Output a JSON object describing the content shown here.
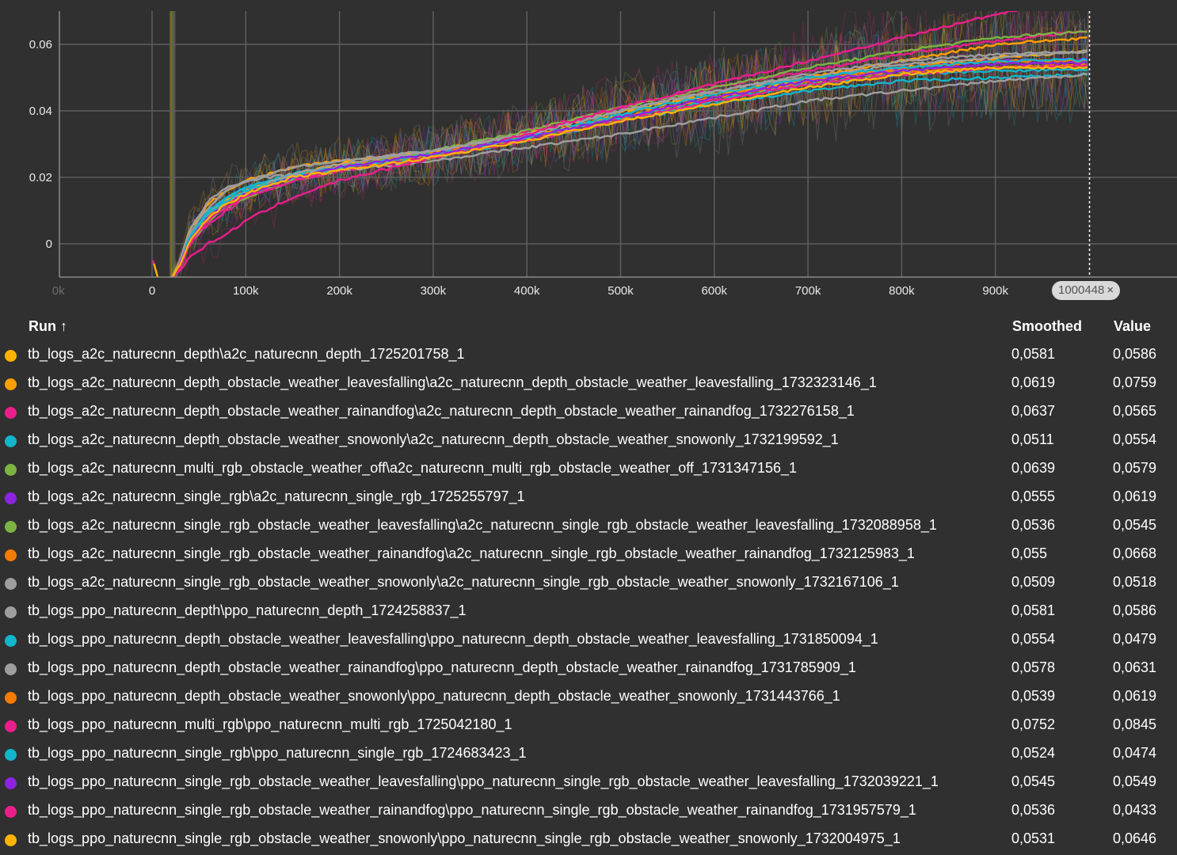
{
  "chart_data": {
    "type": "line",
    "title": "",
    "xlabel": "",
    "ylabel": "",
    "xlim": [
      -100000,
      1090000
    ],
    "ylim": [
      -0.01,
      0.07
    ],
    "x_ticks": [
      "0k",
      "0",
      "100k",
      "200k",
      "300k",
      "400k",
      "500k",
      "600k",
      "700k",
      "800k",
      "900k"
    ],
    "y_ticks": [
      "0",
      "0.02",
      "0.04",
      "0.06"
    ],
    "grid": true,
    "hover_step": 1000448,
    "x": [
      10000,
      20000,
      30000,
      40000,
      60000,
      80000,
      100000,
      150000,
      200000,
      300000,
      400000,
      500000,
      600000,
      700000,
      800000,
      900000,
      1000448
    ],
    "series": [
      {
        "name": "tb_logs_a2c_naturecnn_depth\\a2c_naturecnn_depth_1725201758_1",
        "color": "#ffb300",
        "values": [
          -0.012,
          -0.011,
          -0.006,
          0.002,
          0.009,
          0.013,
          0.016,
          0.021,
          0.024,
          0.028,
          0.033,
          0.04,
          0.045,
          0.049,
          0.053,
          0.056,
          0.058
        ]
      },
      {
        "name": "tb_logs_a2c_naturecnn_depth_obstacle_weather_leavesfalling\\a2c_naturecnn_depth_obstacle_weather_leavesfalling_1732323146_1",
        "color": "#ff9f00",
        "values": [
          -0.012,
          -0.011,
          -0.005,
          0.004,
          0.012,
          0.016,
          0.019,
          0.023,
          0.025,
          0.027,
          0.032,
          0.039,
          0.045,
          0.05,
          0.055,
          0.06,
          0.062
        ]
      },
      {
        "name": "tb_logs_a2c_naturecnn_depth_obstacle_weather_rainandfog\\a2c_naturecnn_depth_obstacle_weather_rainandfog_1732276158_1",
        "color": "#e91e8c",
        "values": [
          -0.012,
          -0.011,
          -0.007,
          0.0,
          0.006,
          0.01,
          0.014,
          0.019,
          0.022,
          0.027,
          0.034,
          0.041,
          0.047,
          0.052,
          0.057,
          0.061,
          0.064
        ]
      },
      {
        "name": "tb_logs_a2c_naturecnn_depth_obstacle_weather_snowonly\\a2c_naturecnn_depth_obstacle_weather_snowonly_1732199592_1",
        "color": "#12b5cb",
        "values": [
          -0.012,
          -0.011,
          -0.006,
          0.002,
          0.01,
          0.014,
          0.017,
          0.021,
          0.023,
          0.026,
          0.031,
          0.037,
          0.042,
          0.046,
          0.049,
          0.05,
          0.051
        ]
      },
      {
        "name": "tb_logs_a2c_naturecnn_multi_rgb_obstacle_weather_off\\a2c_naturecnn_multi_rgb_obstacle_weather_off_1731347156_1",
        "color": "#7cb342",
        "values": [
          -0.012,
          -0.011,
          -0.006,
          0.001,
          0.008,
          0.012,
          0.016,
          0.02,
          0.023,
          0.028,
          0.034,
          0.041,
          0.047,
          0.053,
          0.058,
          0.062,
          0.064
        ]
      },
      {
        "name": "tb_logs_a2c_naturecnn_single_rgb\\a2c_naturecnn_single_rgb_1725255797_1",
        "color": "#8e24e0",
        "values": [
          -0.012,
          -0.011,
          -0.006,
          0.001,
          0.008,
          0.012,
          0.015,
          0.02,
          0.023,
          0.027,
          0.032,
          0.038,
          0.044,
          0.049,
          0.053,
          0.055,
          0.0555
        ]
      },
      {
        "name": "tb_logs_a2c_naturecnn_single_rgb_obstacle_weather_leavesfalling\\a2c_naturecnn_single_rgb_obstacle_weather_leavesfalling_1732088958_1",
        "color": "#7cb342",
        "values": [
          -0.012,
          -0.011,
          -0.007,
          0.0,
          0.007,
          0.011,
          0.014,
          0.019,
          0.022,
          0.026,
          0.031,
          0.037,
          0.043,
          0.048,
          0.051,
          0.053,
          0.0536
        ]
      },
      {
        "name": "tb_logs_a2c_naturecnn_single_rgb_obstacle_weather_rainandfog\\a2c_naturecnn_single_rgb_obstacle_weather_rainandfog_1732125983_1",
        "color": "#f57c00",
        "values": [
          -0.012,
          -0.011,
          -0.006,
          0.002,
          0.009,
          0.013,
          0.016,
          0.02,
          0.023,
          0.027,
          0.032,
          0.038,
          0.044,
          0.049,
          0.053,
          0.055,
          0.055
        ]
      },
      {
        "name": "tb_logs_a2c_naturecnn_single_rgb_obstacle_weather_snowonly\\a2c_naturecnn_single_rgb_obstacle_weather_snowonly_1732167106_1",
        "color": "#9e9e9e",
        "values": [
          -0.012,
          -0.011,
          -0.005,
          0.004,
          0.013,
          0.017,
          0.019,
          0.021,
          0.022,
          0.025,
          0.029,
          0.033,
          0.038,
          0.043,
          0.046,
          0.049,
          0.0509
        ]
      },
      {
        "name": "tb_logs_ppo_naturecnn_depth\\ppo_naturecnn_depth_1724258837_1",
        "color": "#9e9e9e",
        "values": [
          -0.012,
          -0.011,
          -0.005,
          0.003,
          0.011,
          0.016,
          0.019,
          0.023,
          0.025,
          0.028,
          0.033,
          0.04,
          0.046,
          0.05,
          0.054,
          0.056,
          0.058
        ]
      },
      {
        "name": "tb_logs_ppo_naturecnn_depth_obstacle_weather_leavesfalling\\ppo_naturecnn_depth_obstacle_weather_leavesfalling_1731850094_1",
        "color": "#12b5cb",
        "values": [
          -0.012,
          -0.011,
          -0.006,
          0.002,
          0.01,
          0.014,
          0.017,
          0.021,
          0.023,
          0.027,
          0.032,
          0.039,
          0.045,
          0.05,
          0.053,
          0.055,
          0.0554
        ]
      },
      {
        "name": "tb_logs_ppo_naturecnn_depth_obstacle_weather_rainandfog\\ppo_naturecnn_depth_obstacle_weather_rainandfog_1731785909_1",
        "color": "#9e9e9e",
        "values": [
          -0.012,
          -0.011,
          -0.006,
          0.002,
          0.009,
          0.013,
          0.016,
          0.021,
          0.024,
          0.028,
          0.033,
          0.04,
          0.046,
          0.051,
          0.055,
          0.057,
          0.0578
        ]
      },
      {
        "name": "tb_logs_ppo_naturecnn_depth_obstacle_weather_snowonly\\ppo_naturecnn_depth_obstacle_weather_snowonly_1731443766_1",
        "color": "#f57c00",
        "values": [
          -0.012,
          -0.011,
          -0.006,
          0.001,
          0.008,
          0.012,
          0.015,
          0.02,
          0.023,
          0.027,
          0.032,
          0.038,
          0.044,
          0.049,
          0.052,
          0.053,
          0.0539
        ]
      },
      {
        "name": "tb_logs_ppo_naturecnn_multi_rgb\\ppo_naturecnn_multi_rgb_1725042180_1",
        "color": "#e91e8c",
        "values": [
          -0.012,
          -0.011,
          -0.008,
          -0.004,
          0.0,
          0.003,
          0.007,
          0.014,
          0.019,
          0.026,
          0.033,
          0.041,
          0.048,
          0.055,
          0.062,
          0.069,
          0.0752
        ]
      },
      {
        "name": "tb_logs_ppo_naturecnn_single_rgb\\ppo_naturecnn_single_rgb_1724683423_1",
        "color": "#12b5cb",
        "values": [
          -0.012,
          -0.011,
          -0.006,
          0.002,
          0.009,
          0.013,
          0.016,
          0.02,
          0.023,
          0.027,
          0.032,
          0.038,
          0.043,
          0.048,
          0.051,
          0.052,
          0.0524
        ]
      },
      {
        "name": "tb_logs_ppo_naturecnn_single_rgb_obstacle_weather_leavesfalling\\ppo_naturecnn_single_rgb_obstacle_weather_leavesfalling_1732039221_1",
        "color": "#8e24e0",
        "values": [
          -0.012,
          -0.011,
          -0.006,
          0.001,
          0.008,
          0.012,
          0.015,
          0.02,
          0.023,
          0.027,
          0.032,
          0.038,
          0.044,
          0.049,
          0.052,
          0.054,
          0.0545
        ]
      },
      {
        "name": "tb_logs_ppo_naturecnn_single_rgb_obstacle_weather_rainandfog\\ppo_naturecnn_single_rgb_obstacle_weather_rainandfog_1731957579_1",
        "color": "#e91e8c",
        "values": [
          -0.012,
          -0.011,
          -0.007,
          0.0,
          0.007,
          0.011,
          0.014,
          0.019,
          0.022,
          0.026,
          0.031,
          0.037,
          0.043,
          0.048,
          0.051,
          0.053,
          0.0536
        ]
      },
      {
        "name": "tb_logs_ppo_naturecnn_single_rgb_obstacle_weather_snowonly\\ppo_naturecnn_single_rgb_obstacle_weather_snowonly_1732004975_1",
        "color": "#ffb300",
        "values": [
          -0.012,
          -0.011,
          -0.006,
          0.001,
          0.008,
          0.012,
          0.015,
          0.02,
          0.022,
          0.026,
          0.031,
          0.037,
          0.042,
          0.047,
          0.051,
          0.053,
          0.0531
        ]
      }
    ]
  },
  "step_chip": {
    "label": "1000448",
    "close": "×"
  },
  "table": {
    "headers": {
      "run": "Run ↑",
      "smoothed": "Smoothed",
      "value": "Value"
    },
    "rows": [
      {
        "run": "tb_logs_a2c_naturecnn_depth\\a2c_naturecnn_depth_1725201758_1",
        "color": "#ffb300",
        "smoothed": "0,0581",
        "value": "0,0586"
      },
      {
        "run": "tb_logs_a2c_naturecnn_depth_obstacle_weather_leavesfalling\\a2c_naturecnn_depth_obstacle_weather_leavesfalling_1732323146_1",
        "color": "#ff9f00",
        "smoothed": "0,0619",
        "value": "0,0759"
      },
      {
        "run": "tb_logs_a2c_naturecnn_depth_obstacle_weather_rainandfog\\a2c_naturecnn_depth_obstacle_weather_rainandfog_1732276158_1",
        "color": "#e91e8c",
        "smoothed": "0,0637",
        "value": "0,0565"
      },
      {
        "run": "tb_logs_a2c_naturecnn_depth_obstacle_weather_snowonly\\a2c_naturecnn_depth_obstacle_weather_snowonly_1732199592_1",
        "color": "#12b5cb",
        "smoothed": "0,0511",
        "value": "0,0554"
      },
      {
        "run": "tb_logs_a2c_naturecnn_multi_rgb_obstacle_weather_off\\a2c_naturecnn_multi_rgb_obstacle_weather_off_1731347156_1",
        "color": "#7cb342",
        "smoothed": "0,0639",
        "value": "0,0579"
      },
      {
        "run": "tb_logs_a2c_naturecnn_single_rgb\\a2c_naturecnn_single_rgb_1725255797_1",
        "color": "#8e24e0",
        "smoothed": "0,0555",
        "value": "0,0619"
      },
      {
        "run": "tb_logs_a2c_naturecnn_single_rgb_obstacle_weather_leavesfalling\\a2c_naturecnn_single_rgb_obstacle_weather_leavesfalling_1732088958_1",
        "color": "#7cb342",
        "smoothed": "0,0536",
        "value": "0,0545"
      },
      {
        "run": "tb_logs_a2c_naturecnn_single_rgb_obstacle_weather_rainandfog\\a2c_naturecnn_single_rgb_obstacle_weather_rainandfog_1732125983_1",
        "color": "#f57c00",
        "smoothed": "0,055",
        "value": "0,0668"
      },
      {
        "run": "tb_logs_a2c_naturecnn_single_rgb_obstacle_weather_snowonly\\a2c_naturecnn_single_rgb_obstacle_weather_snowonly_1732167106_1",
        "color": "#9e9e9e",
        "smoothed": "0,0509",
        "value": "0,0518"
      },
      {
        "run": "tb_logs_ppo_naturecnn_depth\\ppo_naturecnn_depth_1724258837_1",
        "color": "#9e9e9e",
        "smoothed": "0,0581",
        "value": "0,0586"
      },
      {
        "run": "tb_logs_ppo_naturecnn_depth_obstacle_weather_leavesfalling\\ppo_naturecnn_depth_obstacle_weather_leavesfalling_1731850094_1",
        "color": "#12b5cb",
        "smoothed": "0,0554",
        "value": "0,0479"
      },
      {
        "run": "tb_logs_ppo_naturecnn_depth_obstacle_weather_rainandfog\\ppo_naturecnn_depth_obstacle_weather_rainandfog_1731785909_1",
        "color": "#9e9e9e",
        "smoothed": "0,0578",
        "value": "0,0631"
      },
      {
        "run": "tb_logs_ppo_naturecnn_depth_obstacle_weather_snowonly\\ppo_naturecnn_depth_obstacle_weather_snowonly_1731443766_1",
        "color": "#f57c00",
        "smoothed": "0,0539",
        "value": "0,0619"
      },
      {
        "run": "tb_logs_ppo_naturecnn_multi_rgb\\ppo_naturecnn_multi_rgb_1725042180_1",
        "color": "#e91e8c",
        "smoothed": "0,0752",
        "value": "0,0845"
      },
      {
        "run": "tb_logs_ppo_naturecnn_single_rgb\\ppo_naturecnn_single_rgb_1724683423_1",
        "color": "#12b5cb",
        "smoothed": "0,0524",
        "value": "0,0474"
      },
      {
        "run": "tb_logs_ppo_naturecnn_single_rgb_obstacle_weather_leavesfalling\\ppo_naturecnn_single_rgb_obstacle_weather_leavesfalling_1732039221_1",
        "color": "#8e24e0",
        "smoothed": "0,0545",
        "value": "0,0549"
      },
      {
        "run": "tb_logs_ppo_naturecnn_single_rgb_obstacle_weather_rainandfog\\ppo_naturecnn_single_rgb_obstacle_weather_rainandfog_1731957579_1",
        "color": "#e91e8c",
        "smoothed": "0,0536",
        "value": "0,0433"
      },
      {
        "run": "tb_logs_ppo_naturecnn_single_rgb_obstacle_weather_snowonly\\ppo_naturecnn_single_rgb_obstacle_weather_snowonly_1732004975_1",
        "color": "#ffb300",
        "smoothed": "0,0531",
        "value": "0,0646"
      }
    ]
  }
}
